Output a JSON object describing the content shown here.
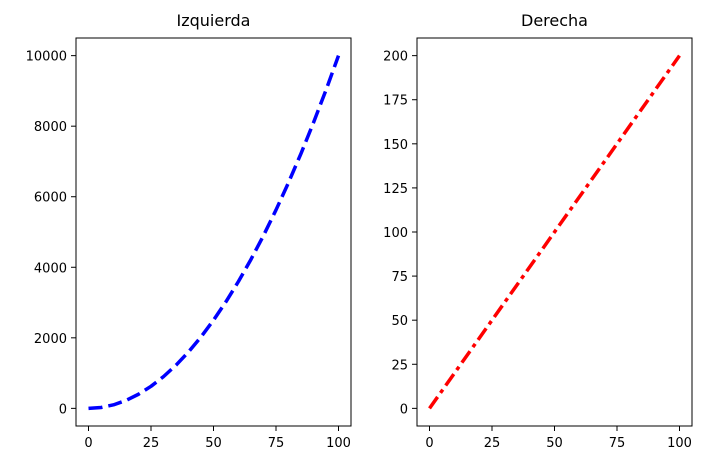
{
  "chart_data": [
    {
      "type": "line",
      "title": "Izquierda",
      "xlabel": "",
      "ylabel": "",
      "xlim": [
        -5,
        105
      ],
      "ylim": [
        -500,
        10500
      ],
      "x_ticks": [
        0,
        25,
        50,
        75,
        100
      ],
      "x_tick_labels": [
        "0",
        "25",
        "50",
        "75",
        "100"
      ],
      "y_ticks": [
        0,
        2000,
        4000,
        6000,
        8000,
        10000
      ],
      "y_tick_labels": [
        "0",
        "2000",
        "4000",
        "6000",
        "8000",
        "10000"
      ],
      "grid": false,
      "series": [
        {
          "line_style": "dashed",
          "color": "#0000ff",
          "x": [
            0,
            5,
            10,
            15,
            20,
            25,
            30,
            35,
            40,
            45,
            50,
            55,
            60,
            65,
            70,
            75,
            80,
            85,
            90,
            95,
            100
          ],
          "y": [
            0,
            25,
            100,
            225,
            400,
            625,
            900,
            1225,
            1600,
            2025,
            2500,
            3025,
            3600,
            4225,
            4900,
            5625,
            6400,
            7225,
            8100,
            9025,
            10000
          ]
        }
      ]
    },
    {
      "type": "line",
      "title": "Derecha",
      "xlabel": "",
      "ylabel": "",
      "xlim": [
        -5,
        105
      ],
      "ylim": [
        -10,
        210
      ],
      "x_ticks": [
        0,
        25,
        50,
        75,
        100
      ],
      "x_tick_labels": [
        "0",
        "25",
        "50",
        "75",
        "100"
      ],
      "y_ticks": [
        0,
        25,
        50,
        75,
        100,
        125,
        150,
        175,
        200
      ],
      "y_tick_labels": [
        "0",
        "25",
        "50",
        "75",
        "100",
        "125",
        "150",
        "175",
        "200"
      ],
      "grid": false,
      "series": [
        {
          "line_style": "dashdot",
          "color": "#ff0000",
          "x": [
            0,
            100
          ],
          "y": [
            0,
            200
          ]
        }
      ]
    }
  ]
}
